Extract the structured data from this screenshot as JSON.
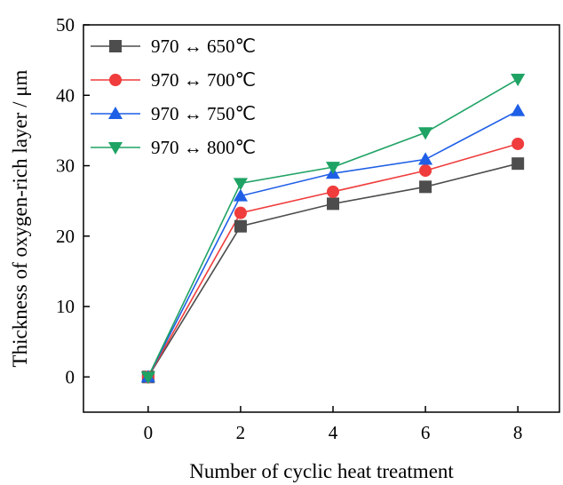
{
  "chart_data": {
    "type": "line",
    "title": "",
    "xlabel": "Number of cyclic heat treatment",
    "ylabel": "Thickness of oxygen-rich layer / μm",
    "x": [
      0,
      2,
      4,
      6,
      8
    ],
    "xlim": [
      -1.4,
      8.9
    ],
    "ylim": [
      -5,
      50
    ],
    "xticks": [
      0,
      2,
      4,
      6,
      8
    ],
    "yticks": [
      0,
      10,
      20,
      30,
      40,
      50
    ],
    "grid": false,
    "legend_position": "top-left",
    "series": [
      {
        "name": "970 ↔ 650℃",
        "values": [
          0,
          21.4,
          24.6,
          27.0,
          30.3
        ],
        "color": "#4d4d4d",
        "marker": "square"
      },
      {
        "name": "970 ↔ 700℃",
        "values": [
          0,
          23.3,
          26.3,
          29.3,
          33.1
        ],
        "color": "#f03c3c",
        "marker": "circle"
      },
      {
        "name": "970 ↔ 750℃",
        "values": [
          0,
          25.7,
          28.9,
          30.9,
          37.8
        ],
        "color": "#1f5fe6",
        "marker": "triangle-up"
      },
      {
        "name": "970 ↔ 800℃",
        "values": [
          0,
          27.5,
          29.8,
          34.7,
          42.3
        ],
        "color": "#1fa364",
        "marker": "triangle-down"
      }
    ]
  }
}
